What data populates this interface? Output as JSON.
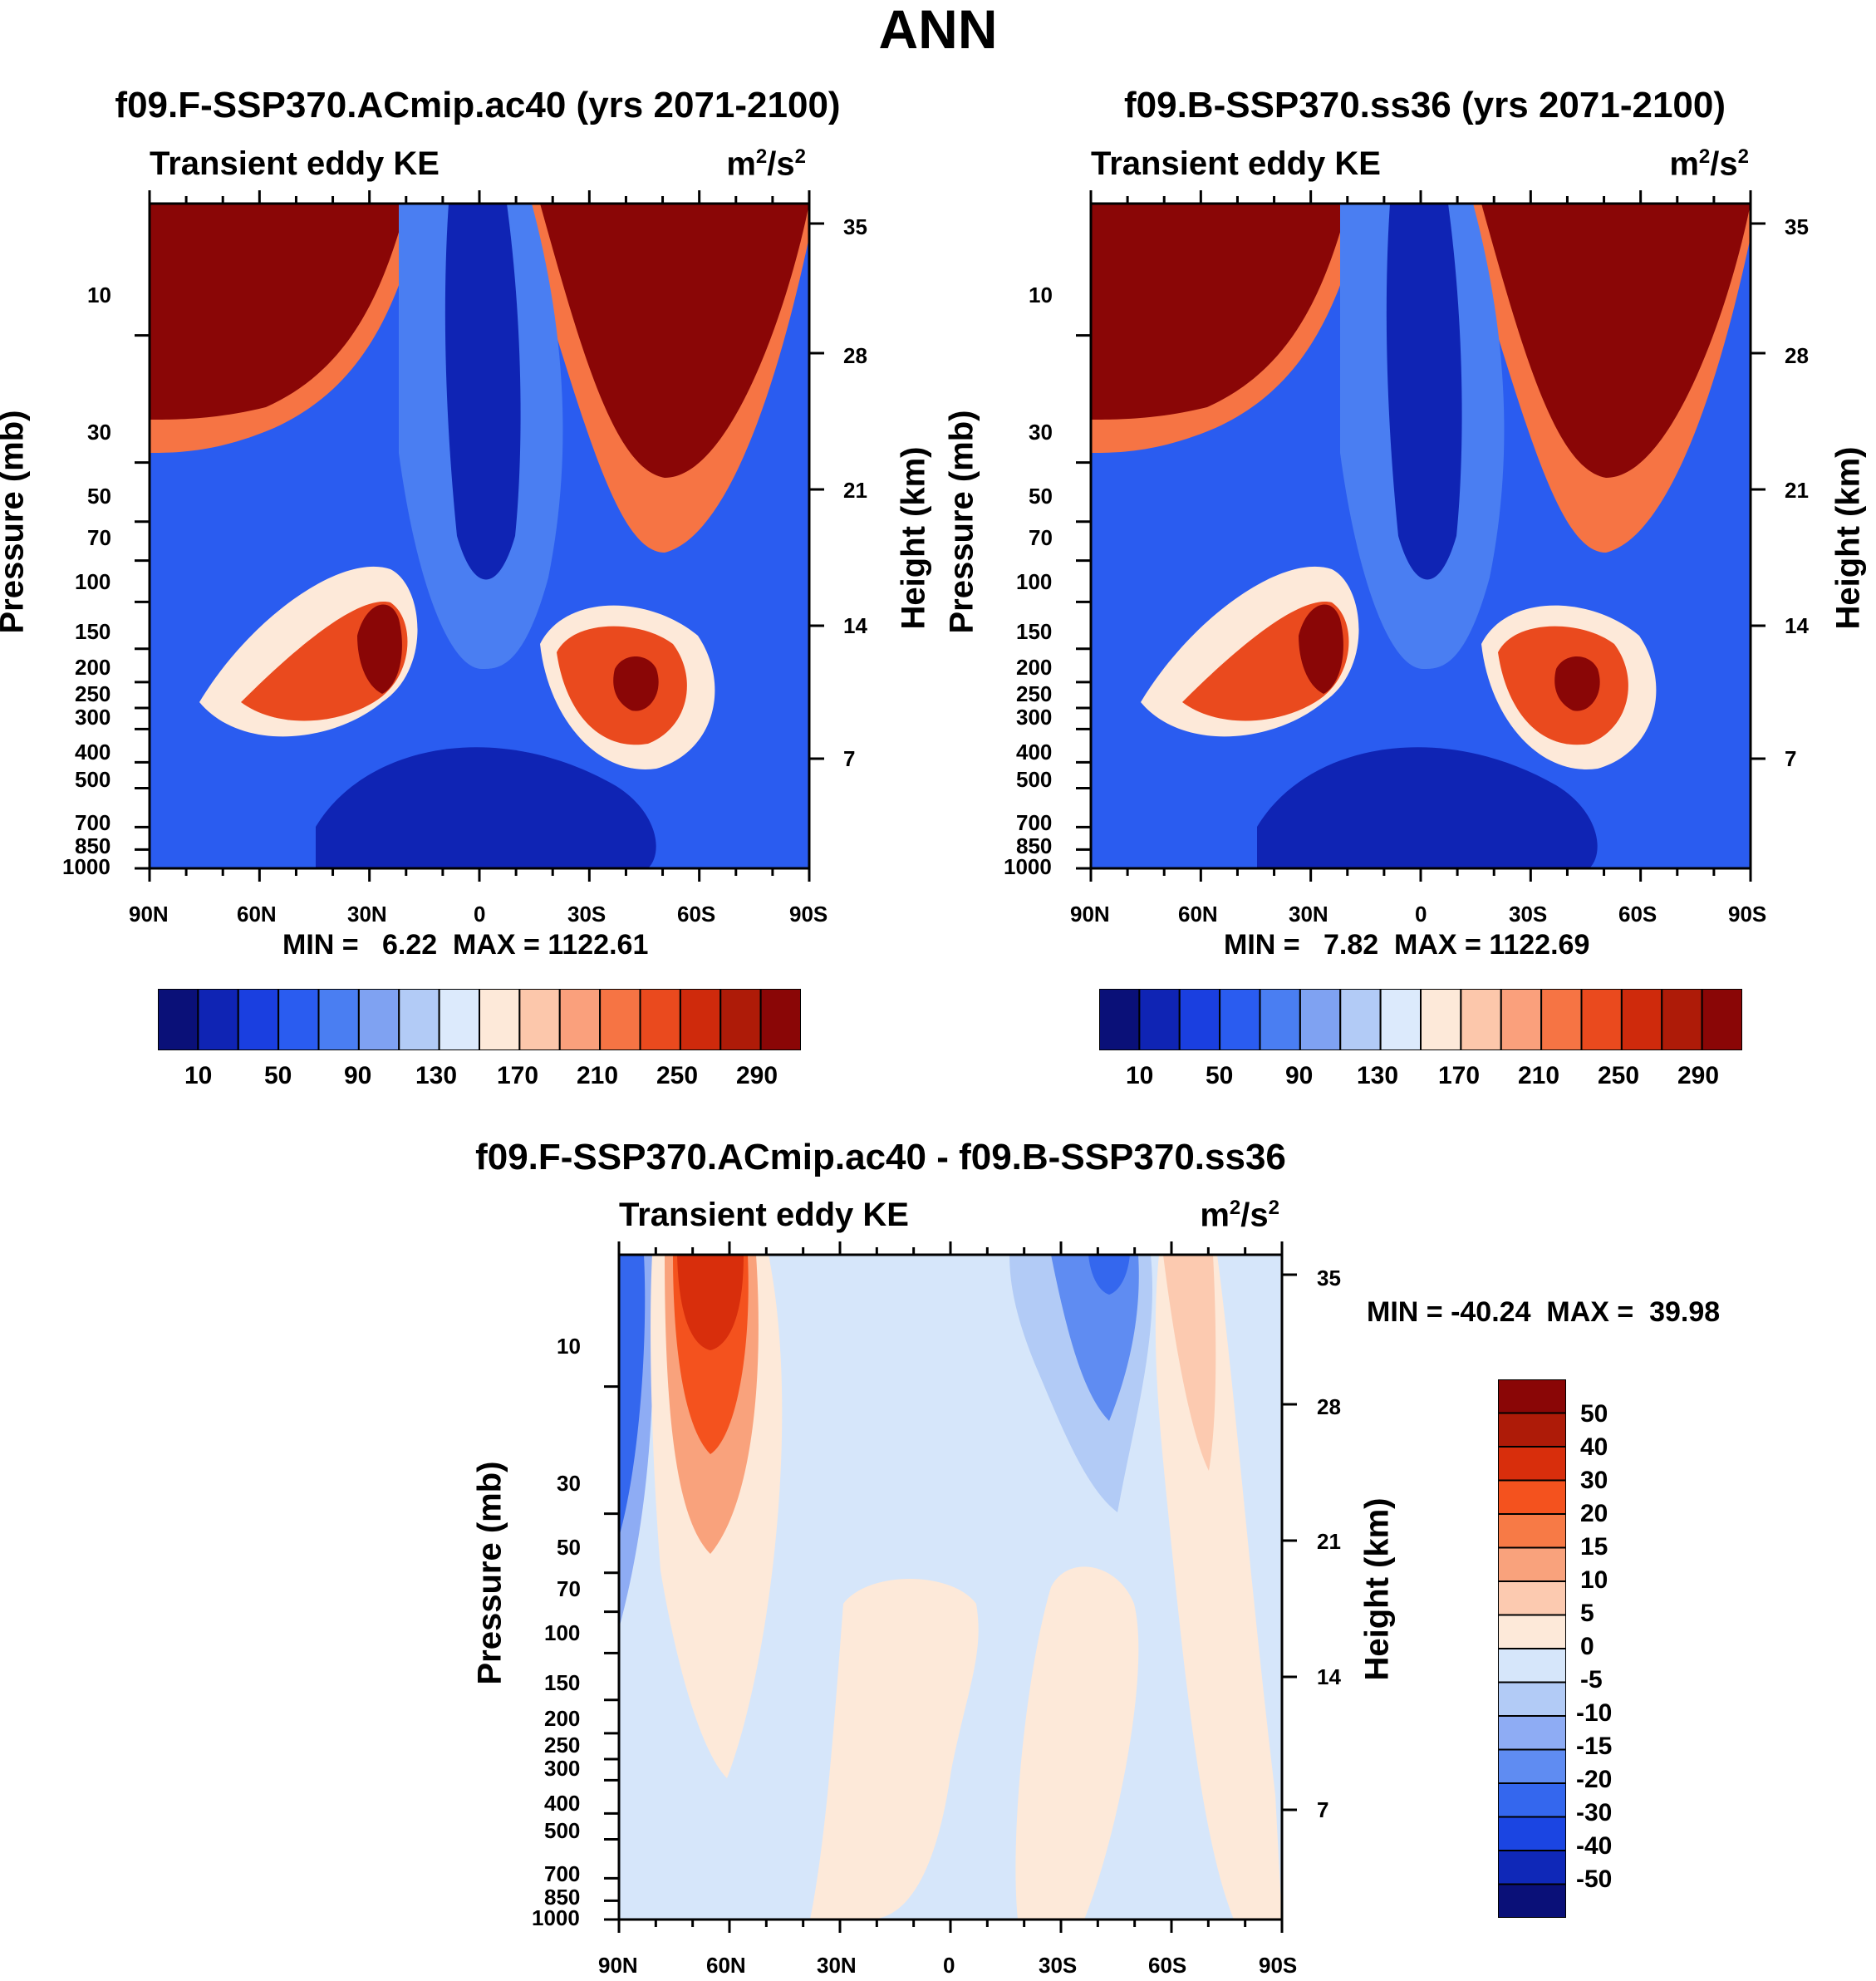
{
  "main_title": "ANN",
  "chart_data": [
    {
      "type": "heatmap",
      "panel": "top-left",
      "title": "f09.F-SSP370.ACmip.ac40 (yrs 2071-2100)",
      "subtitle": "Transient eddy KE",
      "units_base": "m",
      "units_exp1": "2",
      "units_sep": "/s",
      "units_exp2": "2",
      "ylabel": "Pressure (mb)",
      "ylabel_right": "Height (km)",
      "x_ticks": [
        "90N",
        "60N",
        "30N",
        "0",
        "30S",
        "60S",
        "90S"
      ],
      "y_ticks": [
        "10",
        "30",
        "50",
        "70",
        "100",
        "150",
        "200",
        "250",
        "300",
        "400",
        "500",
        "700",
        "850",
        "1000"
      ],
      "y_ticks_right": [
        "35",
        "28",
        "21",
        "14",
        "7"
      ],
      "min": 6.22,
      "max": 1122.61,
      "minmax_text": "MIN =   6.22  MAX = 1122.61",
      "colorbar": {
        "orientation": "horizontal",
        "levels": [
          10,
          30,
          50,
          70,
          90,
          110,
          130,
          150,
          170,
          190,
          210,
          230,
          250,
          270,
          290
        ],
        "labels": [
          "10",
          "50",
          "90",
          "130",
          "170",
          "210",
          "250",
          "290"
        ]
      }
    },
    {
      "type": "heatmap",
      "panel": "top-right",
      "title": "f09.B-SSP370.ss36 (yrs 2071-2100)",
      "subtitle": "Transient eddy KE",
      "units_base": "m",
      "units_exp1": "2",
      "units_sep": "/s",
      "units_exp2": "2",
      "ylabel": "Pressure (mb)",
      "ylabel_right": "Height (km)",
      "x_ticks": [
        "90N",
        "60N",
        "30N",
        "0",
        "30S",
        "60S",
        "90S"
      ],
      "y_ticks": [
        "10",
        "30",
        "50",
        "70",
        "100",
        "150",
        "200",
        "250",
        "300",
        "400",
        "500",
        "700",
        "850",
        "1000"
      ],
      "y_ticks_right": [
        "35",
        "28",
        "21",
        "14",
        "7"
      ],
      "min": 7.82,
      "max": 1122.69,
      "minmax_text": "MIN =   7.82  MAX = 1122.69",
      "colorbar": {
        "orientation": "horizontal",
        "levels": [
          10,
          30,
          50,
          70,
          90,
          110,
          130,
          150,
          170,
          190,
          210,
          230,
          250,
          270,
          290
        ],
        "labels": [
          "10",
          "50",
          "90",
          "130",
          "170",
          "210",
          "250",
          "290"
        ]
      }
    },
    {
      "type": "heatmap",
      "panel": "bottom",
      "title": "f09.F-SSP370.ACmip.ac40 - f09.B-SSP370.ss36",
      "subtitle": "Transient eddy KE",
      "units_base": "m",
      "units_exp1": "2",
      "units_sep": "/s",
      "units_exp2": "2",
      "ylabel": "Pressure (mb)",
      "ylabel_right": "Height (km)",
      "x_ticks": [
        "90N",
        "60N",
        "30N",
        "0",
        "30S",
        "60S",
        "90S"
      ],
      "y_ticks": [
        "10",
        "30",
        "50",
        "70",
        "100",
        "150",
        "200",
        "250",
        "300",
        "400",
        "500",
        "700",
        "850",
        "1000"
      ],
      "y_ticks_right": [
        "35",
        "28",
        "21",
        "14",
        "7"
      ],
      "min": -40.24,
      "max": 39.98,
      "minmax_text": "MIN = -40.24  MAX =  39.98",
      "colorbar": {
        "orientation": "vertical",
        "labels": [
          "50",
          "40",
          "30",
          "20",
          "15",
          "10",
          "5",
          "0",
          "-5",
          "-10",
          "-15",
          "-20",
          "-30",
          "-40",
          "-50"
        ]
      }
    }
  ],
  "colors": {
    "positive_scale": [
      "#0a1078",
      "#0f24b4",
      "#1a3fe0",
      "#2a5cf0",
      "#4a7ef2",
      "#7fa2f2",
      "#b2cbf6",
      "#dceafc",
      "#fde9d9",
      "#fcc7ab",
      "#faa07c",
      "#f67444",
      "#ea4a1e",
      "#cf2a0c",
      "#ae1b08",
      "#8a0606"
    ],
    "diff_scale": [
      "#8a0606",
      "#ae1b08",
      "#d82e0c",
      "#f4521e",
      "#f77a46",
      "#f9a27c",
      "#fccab0",
      "#fde9d9",
      "#d6e6fa",
      "#b2cbf6",
      "#8eacf4",
      "#5f8cf2",
      "#3467ee",
      "#1b45e2",
      "#0f28b8",
      "#0a1078"
    ]
  }
}
